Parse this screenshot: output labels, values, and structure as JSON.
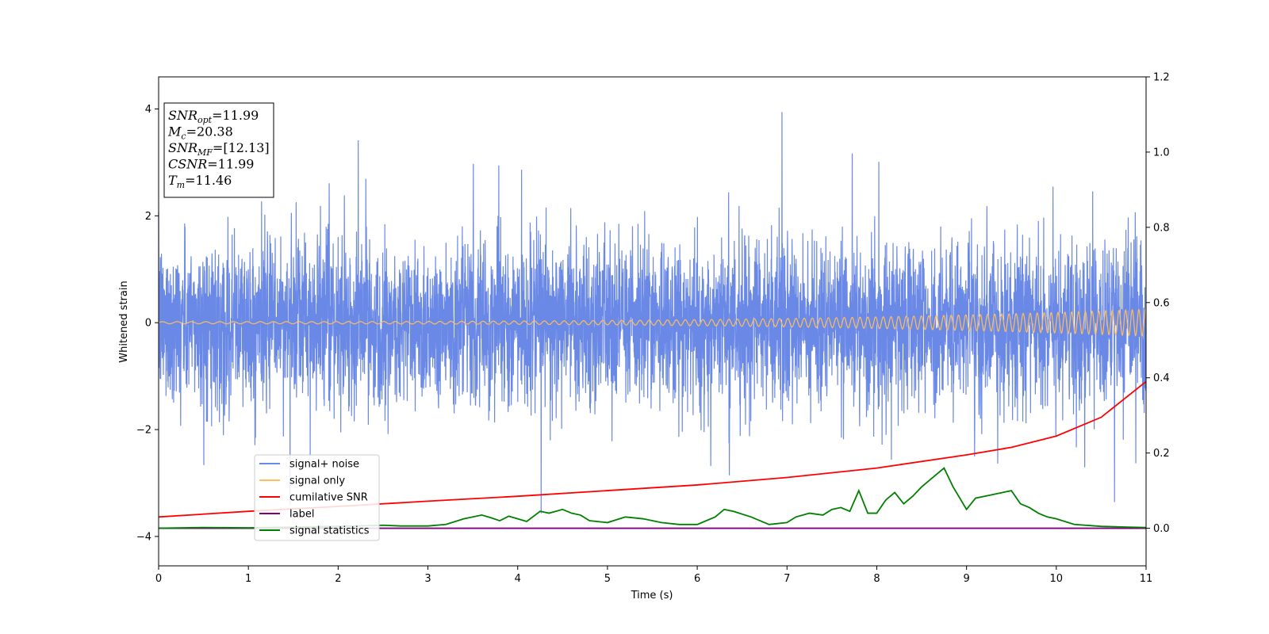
{
  "chart_data": {
    "type": "line",
    "title": "",
    "xlabel": "Time (s)",
    "ylabel": "Whitened strain",
    "xlim": [
      0,
      11
    ],
    "ylim": [
      -4.55,
      4.6
    ],
    "y2lim": [
      -0.1,
      1.2
    ],
    "xticks": [
      0,
      1,
      2,
      3,
      4,
      5,
      6,
      7,
      8,
      9,
      10,
      11
    ],
    "yticks": [
      -4,
      -2,
      0,
      2,
      4
    ],
    "y2ticks": [
      0.0,
      0.2,
      0.4,
      0.6,
      0.8,
      1.0,
      1.2
    ],
    "y2tick_labels": [
      "0.0",
      "0.2",
      "0.4",
      "0.6",
      "0.8",
      "1.0",
      "1.2"
    ],
    "grid": false,
    "legend_placement": "lower-left",
    "series": [
      {
        "name": "signal+ noise",
        "axis": "left",
        "color": "#6a88e6",
        "kind": "noise",
        "envelope_std": 1.0,
        "note_x": [
          0,
          11
        ]
      },
      {
        "name": "signal only",
        "axis": "left",
        "color": "#ffbe5a",
        "kind": "chirp",
        "amplitude_start": 0.02,
        "amplitude_end": 0.25,
        "x_range": [
          0,
          11
        ]
      },
      {
        "name": "cumilative SNR",
        "axis": "right",
        "color": "#ff0000",
        "x": [
          0,
          1,
          2,
          3,
          4,
          5,
          6,
          7,
          8,
          9,
          9.5,
          10,
          10.5,
          11
        ],
        "y": [
          0.03,
          0.045,
          0.058,
          0.072,
          0.085,
          0.1,
          0.115,
          0.135,
          0.16,
          0.195,
          0.215,
          0.245,
          0.295,
          0.39
        ]
      },
      {
        "name": "label",
        "axis": "right",
        "color": "#800080",
        "x": [
          0,
          11
        ],
        "y": [
          0,
          0
        ]
      },
      {
        "name": "signal statistics",
        "axis": "right",
        "color": "#008000",
        "x": [
          0,
          0.5,
          1,
          1.5,
          2,
          2.2,
          2.5,
          2.7,
          3,
          3.2,
          3.4,
          3.6,
          3.7,
          3.8,
          3.9,
          4.0,
          4.1,
          4.25,
          4.35,
          4.5,
          4.6,
          4.7,
          4.8,
          5,
          5.2,
          5.4,
          5.6,
          5.8,
          6,
          6.2,
          6.3,
          6.4,
          6.6,
          6.8,
          7.0,
          7.1,
          7.25,
          7.4,
          7.5,
          7.6,
          7.7,
          7.8,
          7.9,
          8.0,
          8.1,
          8.2,
          8.3,
          8.4,
          8.5,
          8.6,
          8.7,
          8.75,
          8.85,
          9.0,
          9.1,
          9.2,
          9.3,
          9.4,
          9.5,
          9.6,
          9.7,
          9.8,
          9.9,
          10.0,
          10.2,
          10.5,
          10.8,
          11
        ],
        "y": [
          0.0,
          0.002,
          0.001,
          0.003,
          0.005,
          0.006,
          0.008,
          0.006,
          0.006,
          0.01,
          0.025,
          0.035,
          0.028,
          0.02,
          0.032,
          0.025,
          0.018,
          0.045,
          0.04,
          0.05,
          0.04,
          0.035,
          0.02,
          0.015,
          0.03,
          0.025,
          0.015,
          0.01,
          0.01,
          0.03,
          0.05,
          0.045,
          0.03,
          0.01,
          0.015,
          0.03,
          0.04,
          0.035,
          0.05,
          0.055,
          0.045,
          0.1,
          0.04,
          0.04,
          0.075,
          0.095,
          0.065,
          0.085,
          0.11,
          0.13,
          0.15,
          0.16,
          0.11,
          0.05,
          0.08,
          0.085,
          0.09,
          0.095,
          0.1,
          0.065,
          0.055,
          0.04,
          0.03,
          0.025,
          0.01,
          0.005,
          0.003,
          0.002
        ]
      }
    ],
    "annotation": {
      "lines": [
        {
          "base": "SNR",
          "sub": "opt",
          "rest": "=11.99"
        },
        {
          "base": "M",
          "sub": "c",
          "rest": "=20.38"
        },
        {
          "base": "SNR",
          "sub": "MF",
          "rest": "=[12.13]"
        },
        {
          "base": "CSNR",
          "sub": "",
          "rest": "=11.99"
        },
        {
          "base": "T",
          "sub": "m",
          "rest": "=11.46"
        }
      ]
    }
  }
}
